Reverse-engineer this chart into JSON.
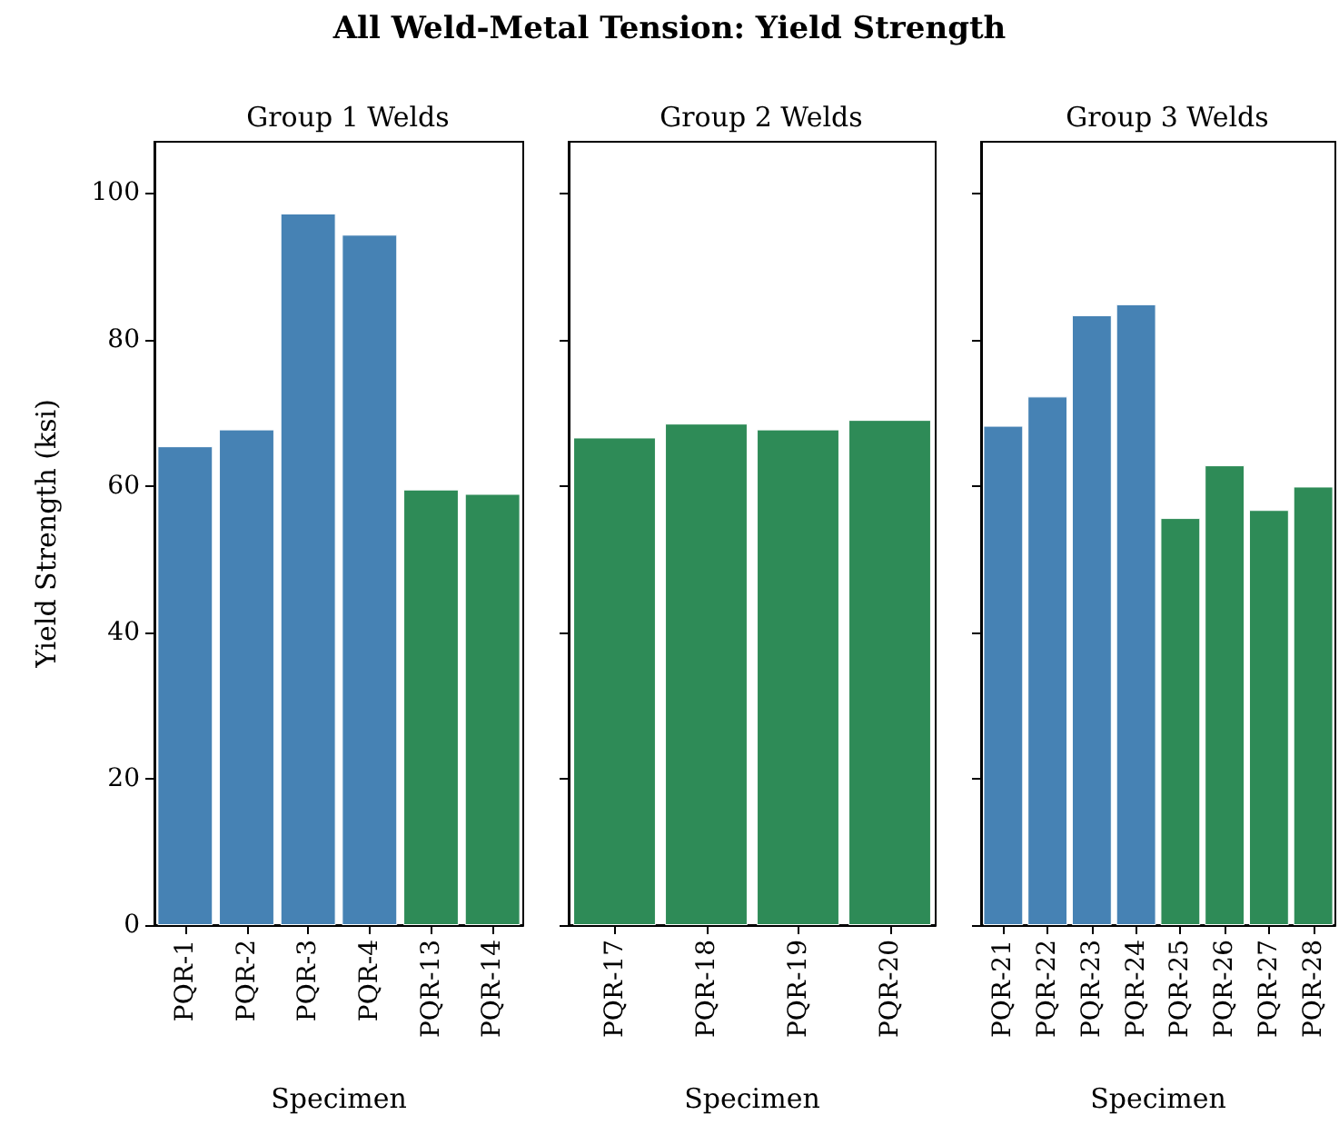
{
  "chart_data": [
    {
      "type": "bar",
      "title": "Group 1 Welds",
      "xlabel": "Specimen",
      "ylabel": "Yield Strength (ksi)",
      "annotations": [
        "All Weld-Metal Tension: Yield Strength"
      ],
      "categories": [
        "PQR-1",
        "PQR-2",
        "PQR-3",
        "PQR-4",
        "PQR-13",
        "PQR-14"
      ],
      "values": [
        65.4,
        67.7,
        97.2,
        94.3,
        59.5,
        58.9
      ],
      "colors": [
        "#4682b4",
        "#4682b4",
        "#4682b4",
        "#4682b4",
        "#2e8b57",
        "#2e8b57"
      ],
      "ylim": [
        0,
        107
      ],
      "yticks": [
        0,
        20,
        40,
        60,
        80,
        100
      ]
    },
    {
      "type": "bar",
      "title": "Group 2 Welds",
      "xlabel": "Specimen",
      "categories": [
        "PQR-17",
        "PQR-18",
        "PQR-19",
        "PQR-20"
      ],
      "values": [
        66.6,
        68.5,
        67.7,
        69.0
      ],
      "colors": [
        "#2e8b57",
        "#2e8b57",
        "#2e8b57",
        "#2e8b57"
      ],
      "ylim": [
        0,
        107
      ],
      "yticks": [
        0,
        20,
        40,
        60,
        80,
        100
      ],
      "tick_labels": "x"
    },
    {
      "type": "bar",
      "title": "Group 3 Welds",
      "xlabel": "Specimen",
      "categories": [
        "PQR-21",
        "PQR-22",
        "PQR-23",
        "PQR-24",
        "PQR-25",
        "PQR-26",
        "PQR-27",
        "PQR-28"
      ],
      "values": [
        68.2,
        72.2,
        83.3,
        84.8,
        55.6,
        62.8,
        56.7,
        59.9
      ],
      "colors": [
        "#4682b4",
        "#4682b4",
        "#4682b4",
        "#4682b4",
        "#2e8b57",
        "#2e8b57",
        "#2e8b57",
        "#2e8b57"
      ],
      "ylim": [
        0,
        107
      ],
      "yticks": [
        0,
        20,
        40,
        60,
        80,
        100
      ],
      "tick_labels": "x"
    }
  ]
}
